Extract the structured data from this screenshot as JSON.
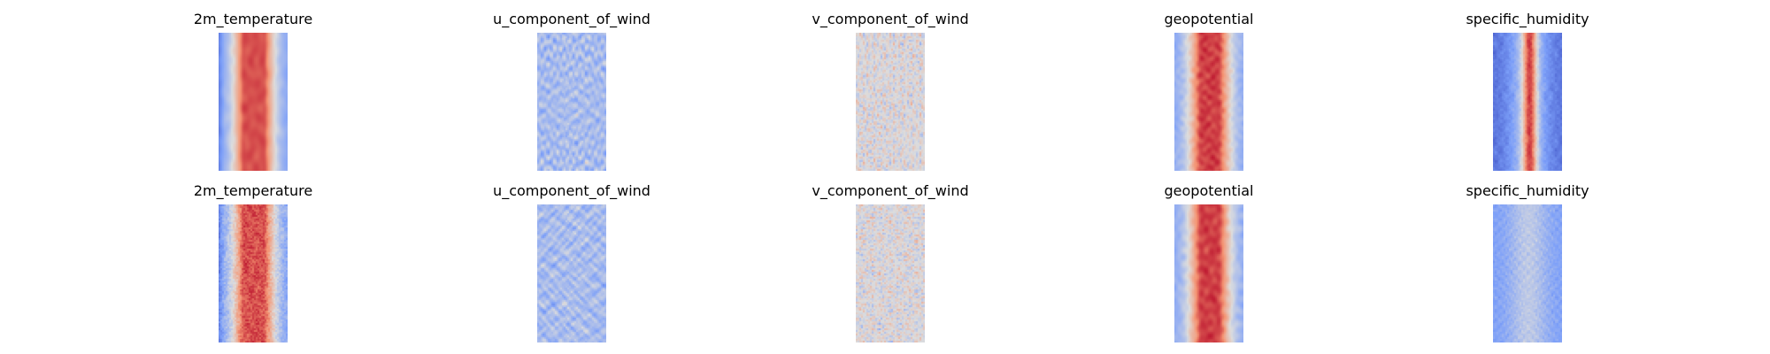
{
  "chart_data": [
    {
      "type": "heatmap",
      "title": "2m_temperature",
      "colormap": "coolwarm",
      "axes_visible": false
    },
    {
      "type": "heatmap",
      "title": "u_component_of_wind",
      "colormap": "coolwarm",
      "axes_visible": false
    },
    {
      "type": "heatmap",
      "title": "v_component_of_wind",
      "colormap": "coolwarm",
      "axes_visible": false
    },
    {
      "type": "heatmap",
      "title": "geopotential",
      "colormap": "coolwarm",
      "axes_visible": false
    },
    {
      "type": "heatmap",
      "title": "specific_humidity",
      "colormap": "coolwarm",
      "axes_visible": false
    },
    {
      "type": "heatmap",
      "title": "2m_temperature",
      "colormap": "coolwarm",
      "axes_visible": false
    },
    {
      "type": "heatmap",
      "title": "u_component_of_wind",
      "colormap": "coolwarm",
      "axes_visible": false
    },
    {
      "type": "heatmap",
      "title": "v_component_of_wind",
      "colormap": "coolwarm",
      "axes_visible": false
    },
    {
      "type": "heatmap",
      "title": "geopotential",
      "colormap": "coolwarm",
      "axes_visible": false
    },
    {
      "type": "heatmap",
      "title": "specific_humidity",
      "colormap": "coolwarm",
      "axes_visible": false
    }
  ]
}
